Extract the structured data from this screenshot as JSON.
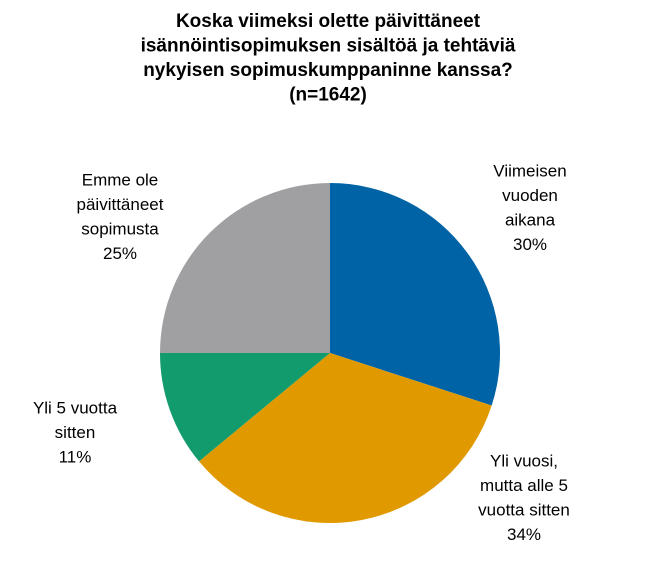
{
  "chart_data": {
    "type": "pie",
    "title": [
      "Koska viimeksi olette päivittäneet",
      "isännöintisopimuksen sisältöä ja tehtäviä",
      "nykyisen sopimuskumppaninne kanssa?",
      "(n=1642)"
    ],
    "categories": [
      [
        "Viimeisen",
        "vuoden",
        "aikana"
      ],
      [
        "Yli vuosi,",
        "mutta alle 5",
        "vuotta sitten"
      ],
      [
        "Yli 5 vuotta",
        "sitten"
      ],
      [
        "Emme ole",
        "päivittäneet",
        "sopimusta"
      ]
    ],
    "values": [
      30,
      34,
      11,
      25
    ],
    "value_labels": [
      "30%",
      "34%",
      "11%",
      "25%"
    ],
    "colors": [
      "#0063a6",
      "#e09a00",
      "#129c6e",
      "#a0a0a3"
    ]
  }
}
